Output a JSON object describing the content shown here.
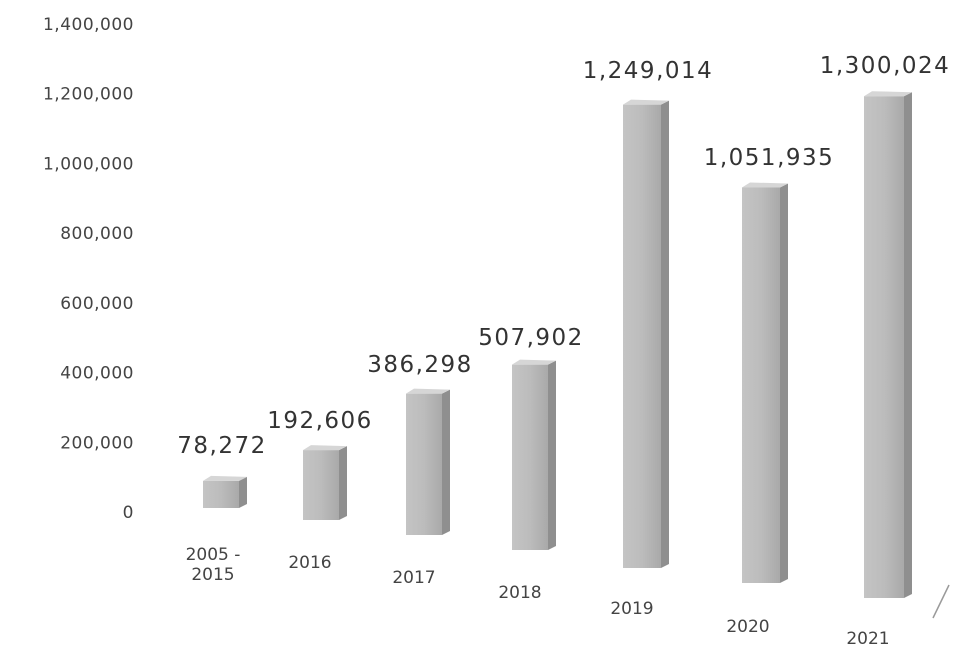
{
  "chart_data": {
    "type": "bar",
    "title": "",
    "xlabel": "",
    "ylabel": "",
    "ylim": [
      0,
      1400000
    ],
    "yticks": [
      "1,400,000",
      "1,200,000",
      "1,000,000",
      "800,000",
      "600,000",
      "400,000",
      "200,000",
      "0"
    ],
    "categories": [
      [
        "2005 -",
        "2015"
      ],
      [
        "2016"
      ],
      [
        "2017"
      ],
      [
        "2018"
      ],
      [
        "2019"
      ],
      [
        "2020"
      ],
      [
        "2021"
      ]
    ],
    "values": [
      78272,
      192606,
      386298,
      507902,
      1249014,
      1051935,
      1300024
    ],
    "data_labels": [
      "78,272",
      "192,606",
      "386,298",
      "507,902",
      "1,249,014",
      "1,051,935",
      "1,300,024"
    ],
    "grid": false,
    "legend": "none",
    "bar_color": "#bdbdbd"
  }
}
